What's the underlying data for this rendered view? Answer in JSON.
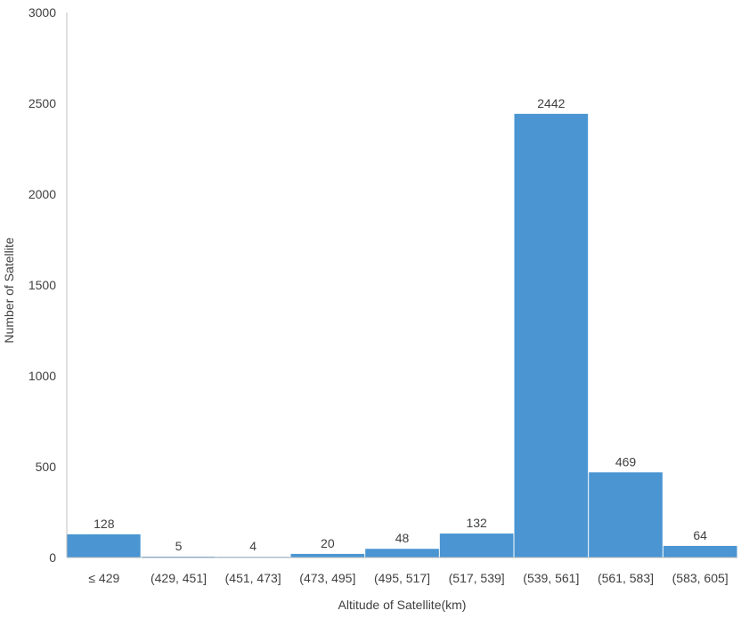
{
  "chart_data": {
    "type": "bar",
    "title": "",
    "xlabel": "Altitude of Satellite(km)",
    "ylabel": "Number of Satellite",
    "categories": [
      "≤ 429",
      "(429, 451]",
      "(451, 473]",
      "(473, 495]",
      "(495, 517]",
      "(517, 539]",
      "(539, 561]",
      "(561, 583]",
      "(583, 605]"
    ],
    "values": [
      128,
      5,
      4,
      20,
      48,
      132,
      2442,
      469,
      64
    ],
    "data_labels": [
      "128",
      "5",
      "4",
      "20",
      "48",
      "132",
      "2442",
      "469",
      "64"
    ],
    "ylim": [
      0,
      3000
    ],
    "yticks": [
      "0",
      "500",
      "1000",
      "1500",
      "2000",
      "2500",
      "3000"
    ],
    "ytick_values": [
      0,
      500,
      1000,
      1500,
      2000,
      2500,
      3000
    ],
    "grid": false,
    "legend": "none",
    "bar_color": "#4a95d2",
    "axis_color": "#bfbfbf"
  }
}
